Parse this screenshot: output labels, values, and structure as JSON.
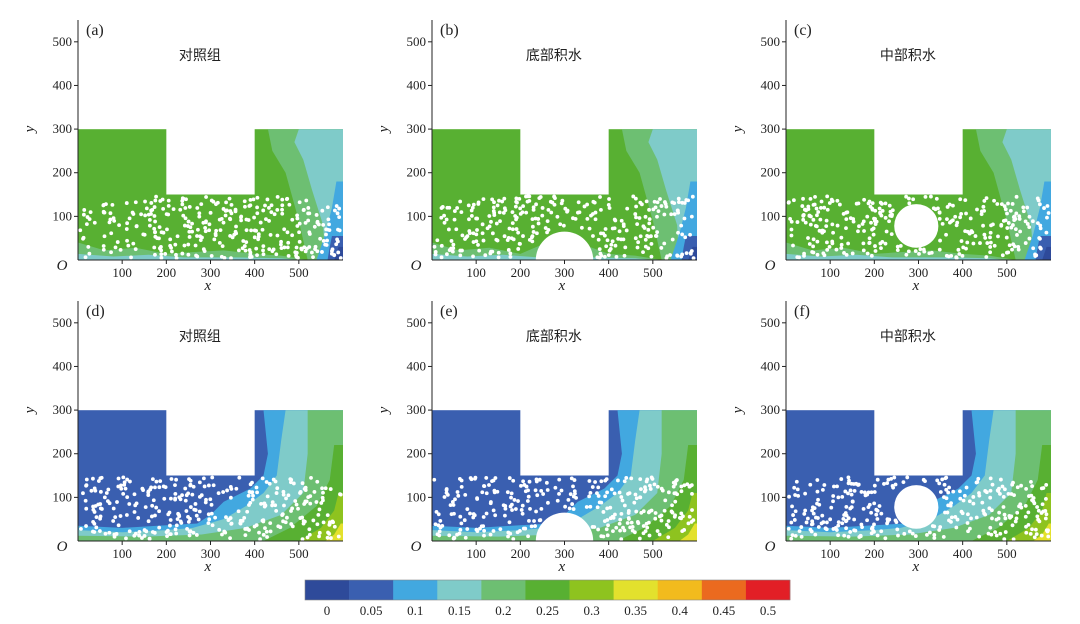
{
  "chart_data": {
    "type": "heatmap",
    "axes": {
      "x_ticks": [
        100,
        200,
        300,
        400,
        500
      ],
      "y_ticks": [
        100,
        200,
        300,
        400,
        500
      ],
      "origin_label": "O",
      "xlabel": "x",
      "ylabel": "y",
      "xlim": [
        0,
        600
      ],
      "ylim": [
        0,
        550
      ]
    },
    "domain_shape": {
      "bottom_channel": {
        "x": [
          0,
          600
        ],
        "y": [
          0,
          150
        ]
      },
      "left_block": {
        "x": [
          0,
          200
        ],
        "y": [
          150,
          300
        ]
      },
      "right_block": {
        "x": [
          400,
          600
        ],
        "y": [
          150,
          300
        ]
      }
    },
    "colorbar": {
      "levels": [
        0,
        0.05,
        0.1,
        0.15,
        0.2,
        0.25,
        0.3,
        0.35,
        0.4,
        0.45,
        0.5
      ],
      "labels": [
        "0",
        "0.05",
        "0.1",
        "0.15",
        "0.2",
        "0.25",
        "0.3",
        "0.35",
        "0.4",
        "0.45",
        "0.5"
      ],
      "colors": [
        "#2e4a9a",
        "#3a5fb0",
        "#42a8e0",
        "#7fcbc9",
        "#6dbf72",
        "#58b032",
        "#8ec31f",
        "#e3e12d",
        "#f2bb1d",
        "#eb6a1f",
        "#e21f26"
      ]
    },
    "panels": [
      {
        "letter": "(a)",
        "title": "对照组",
        "cavity": "none"
      },
      {
        "letter": "(b)",
        "title": "底部积水",
        "cavity": "bottom",
        "cavity_center": [
          300,
          0
        ],
        "cavity_radius": 65
      },
      {
        "letter": "(c)",
        "title": "中部积水",
        "cavity": "middle",
        "cavity_center": [
          295,
          78
        ],
        "cavity_radius": 50
      },
      {
        "letter": "(d)",
        "title": "对照组",
        "cavity": "none"
      },
      {
        "letter": "(e)",
        "title": "底部积水",
        "cavity": "bottom",
        "cavity_center": [
          300,
          0
        ],
        "cavity_radius": 65
      },
      {
        "letter": "(f)",
        "title": "中部积水",
        "cavity": "middle",
        "cavity_center": [
          295,
          78
        ],
        "cavity_radius": 50
      }
    ]
  }
}
